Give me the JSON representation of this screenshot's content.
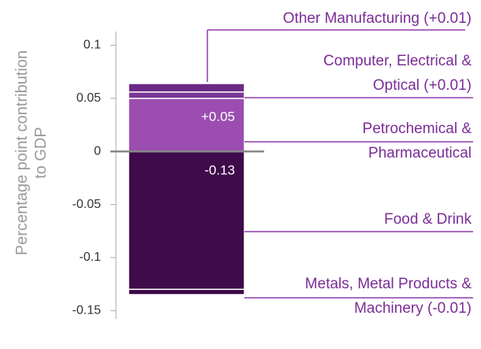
{
  "chart_data": {
    "type": "stacked_bar",
    "y_label": "Percentage point contribution to  GDP",
    "ylim": [
      -0.158,
      0.113
    ],
    "yticks": [
      0.1,
      0.05,
      0,
      -0.05,
      -0.1,
      -0.15
    ],
    "series": [
      {
        "name": "Petrochemical & Pharmaceutical",
        "color": "#9b4db0",
        "values": [
          0.05
        ],
        "value_labels": [
          "+0.05"
        ]
      },
      {
        "name": "Computer, Electrical & Optical",
        "color": "#7a3794",
        "values": [
          0.006
        ],
        "value_labels": [
          "(+0.01)"
        ]
      },
      {
        "name": "Other Manufacturing",
        "color": "#6a2a84",
        "values": [
          0.008
        ],
        "value_labels": [
          "(+0.01)"
        ]
      },
      {
        "name": "Food & Drink",
        "color": "#3f0b4b",
        "values": [
          -0.13
        ],
        "value_labels": [
          "-0.13"
        ]
      },
      {
        "name": "Metals, Metal Products & Machinery",
        "color": "#3d0a48",
        "values": [
          -0.005
        ],
        "value_labels": [
          "(-0.01)"
        ]
      }
    ]
  }
}
